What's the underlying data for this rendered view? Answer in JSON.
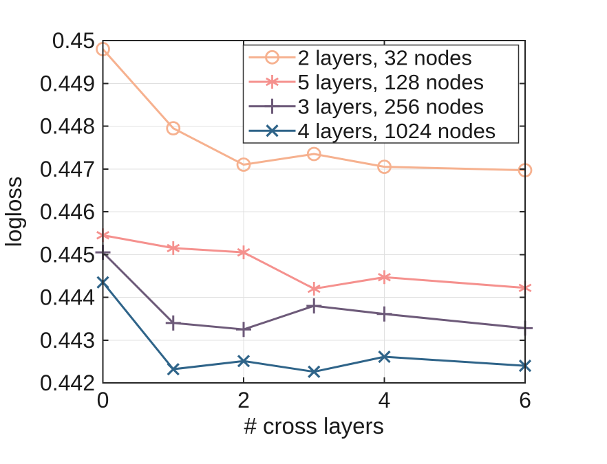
{
  "figure": {
    "background": "#ffffff",
    "axes_color": "#262626",
    "grid_color": "#e0e0e0",
    "text_color": "#1a1a1a",
    "legend_border_color": "#333333"
  },
  "chart_data": {
    "type": "line",
    "title": "",
    "xlabel": "# cross layers",
    "ylabel": "logloss",
    "x": [
      0,
      1,
      2,
      3,
      4,
      6
    ],
    "xlim": [
      0,
      6
    ],
    "ylim": [
      0.442,
      0.45
    ],
    "xticks": {
      "values": [
        0,
        2,
        4,
        6
      ],
      "labels": [
        "0",
        "2",
        "4",
        "6"
      ]
    },
    "yticks": {
      "values": [
        0.442,
        0.443,
        0.444,
        0.445,
        0.446,
        0.447,
        0.448,
        0.449,
        0.45
      ],
      "labels": [
        "0.442",
        "0.443",
        "0.444",
        "0.445",
        "0.446",
        "0.447",
        "0.448",
        "0.449",
        "0.45"
      ]
    },
    "grid": true,
    "legend": {
      "position": "top-right-inside",
      "border": true
    },
    "series": [
      {
        "name": "2 layers, 32 nodes",
        "color": "#f6b18f",
        "marker": "circle",
        "values": [
          0.4498,
          0.44795,
          0.4471,
          0.44735,
          0.44705,
          0.44697
        ]
      },
      {
        "name": "5 layers, 128 nodes",
        "color": "#f5918e",
        "marker": "asterisk",
        "values": [
          0.44545,
          0.44515,
          0.44505,
          0.4442,
          0.44447,
          0.44422
        ]
      },
      {
        "name": "3 layers, 256 nodes",
        "color": "#6d5a79",
        "marker": "plus",
        "values": [
          0.44505,
          0.4434,
          0.44325,
          0.4438,
          0.44361,
          0.44328
        ]
      },
      {
        "name": "4 layers, 1024 nodes",
        "color": "#2f6489",
        "marker": "x",
        "values": [
          0.44435,
          0.44232,
          0.44251,
          0.44226,
          0.44261,
          0.4424
        ]
      }
    ]
  }
}
